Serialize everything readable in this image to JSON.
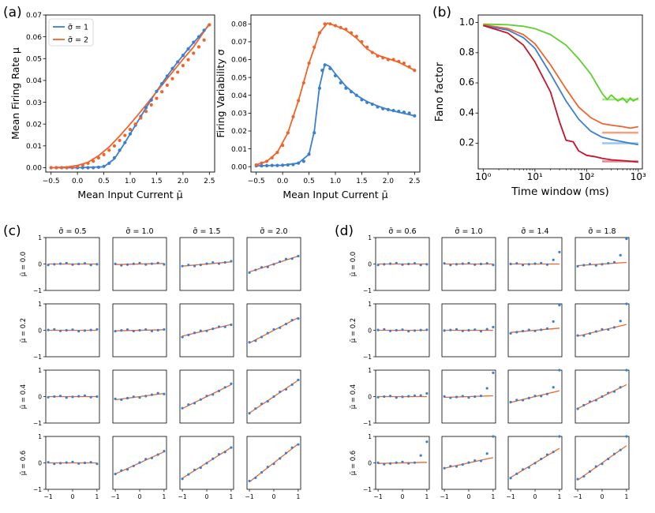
{
  "figure_labels": {
    "a": "(a)",
    "b": "(b)",
    "c": "(c)",
    "d": "(d)"
  },
  "colors": {
    "blue": "#3b7fd1",
    "orange": "#f0642b",
    "green": "#5fcf2a",
    "red": "#c4142a",
    "light_green": "#a6e88a",
    "light_orange": "#f5a07e",
    "light_blue": "#9cc4ee",
    "light_red": "#e88894"
  },
  "chart_data": [
    {
      "id": "a1",
      "type": "line",
      "xlabel": "Mean Input Current μ̄",
      "ylabel": "Mean Firing Rate μ",
      "xlim": [
        -0.6,
        2.6
      ],
      "ylim": [
        -0.002,
        0.07
      ],
      "xticks": [
        -0.5,
        0.0,
        0.5,
        1.0,
        1.5,
        2.0,
        2.5
      ],
      "xtick_labels": [
        "−0.5",
        "0.0",
        "0.5",
        "1.0",
        "1.5",
        "2.0",
        "2.5"
      ],
      "yticks": [
        0,
        0.01,
        0.02,
        0.03,
        0.04,
        0.05,
        0.06,
        0.07
      ],
      "ytick_labels": [
        "0.00",
        "0.01",
        "0.02",
        "0.03",
        "0.04",
        "0.05",
        "0.06",
        "0.07"
      ],
      "legend": {
        "position": "top-left",
        "entries": [
          "σ̄ = 1",
          "σ̄ = 2"
        ]
      },
      "series": [
        {
          "name": "σ̄ = 1",
          "color": "#3b7fd1",
          "x": [
            -0.5,
            0.0,
            0.5,
            0.7,
            0.9,
            1.1,
            1.3,
            1.5,
            1.7,
            1.9,
            2.1,
            2.3,
            2.5
          ],
          "y": [
            0.0,
            0.0,
            0.0004,
            0.004,
            0.0115,
            0.0195,
            0.0275,
            0.035,
            0.042,
            0.0485,
            0.0545,
            0.06,
            0.0655
          ]
        },
        {
          "name": "σ̄ = 2",
          "color": "#f0642b",
          "x": [
            -0.5,
            -0.2,
            0.0,
            0.2,
            0.4,
            0.6,
            0.8,
            1.0,
            1.2,
            1.4,
            1.6,
            1.8,
            2.0,
            2.2,
            2.5
          ],
          "y": [
            0.0,
            0.0003,
            0.001,
            0.0025,
            0.0055,
            0.0095,
            0.0145,
            0.02,
            0.0258,
            0.0318,
            0.0378,
            0.0438,
            0.0497,
            0.0554,
            0.066
          ]
        }
      ],
      "points": [
        {
          "series": "σ̄ = 1",
          "color": "#3b7fd1",
          "x": [
            -0.5,
            -0.4,
            -0.3,
            -0.2,
            -0.1,
            0.0,
            0.1,
            0.2,
            0.3,
            0.4,
            0.5,
            0.6,
            0.7,
            0.8,
            0.9,
            1.0,
            1.1,
            1.2,
            1.3,
            1.4,
            1.5,
            1.6,
            1.7,
            1.8,
            1.9,
            2.0,
            2.1,
            2.2,
            2.3,
            2.4,
            2.5
          ],
          "y": [
            0,
            0,
            0,
            0,
            0,
            0,
            0,
            0,
            0,
            0.0002,
            0.0006,
            0.002,
            0.0045,
            0.008,
            0.0115,
            0.0155,
            0.0195,
            0.0235,
            0.0275,
            0.031,
            0.035,
            0.0385,
            0.042,
            0.0455,
            0.0485,
            0.0515,
            0.0545,
            0.0575,
            0.06,
            0.063,
            0.0655
          ]
        },
        {
          "series": "σ̄ = 2",
          "color": "#f0642b",
          "x": [
            -0.5,
            -0.4,
            -0.3,
            -0.2,
            -0.1,
            0.0,
            0.1,
            0.2,
            0.3,
            0.4,
            0.5,
            0.6,
            0.7,
            0.8,
            0.9,
            1.0,
            1.1,
            1.2,
            1.3,
            1.4,
            1.5,
            1.6,
            1.7,
            1.8,
            1.9,
            2.0,
            2.1,
            2.2,
            2.3,
            2.4,
            2.5
          ],
          "y": [
            0,
            0,
            0,
            0,
            0.0002,
            0.0006,
            0.0012,
            0.002,
            0.003,
            0.0045,
            0.006,
            0.008,
            0.01,
            0.0125,
            0.0148,
            0.0175,
            0.02,
            0.0228,
            0.0258,
            0.0288,
            0.0318,
            0.0348,
            0.0378,
            0.0408,
            0.0438,
            0.0468,
            0.0495,
            0.0525,
            0.0554,
            0.0585,
            0.0655
          ]
        }
      ]
    },
    {
      "id": "a2",
      "type": "line",
      "xlabel": "Mean Input Current μ̄",
      "ylabel": "Firing Variability σ",
      "xlim": [
        -0.6,
        2.6
      ],
      "ylim": [
        -0.003,
        0.085
      ],
      "xticks": [
        -0.5,
        0.0,
        0.5,
        1.0,
        1.5,
        2.0,
        2.5
      ],
      "xtick_labels": [
        "−0.5",
        "0.0",
        "0.5",
        "1.0",
        "1.5",
        "2.0",
        "2.5"
      ],
      "yticks": [
        0,
        0.01,
        0.02,
        0.03,
        0.04,
        0.05,
        0.06,
        0.07,
        0.08
      ],
      "ytick_labels": [
        "0.00",
        "0.01",
        "0.02",
        "0.03",
        "0.04",
        "0.05",
        "0.06",
        "0.07",
        "0.08"
      ],
      "series": [
        {
          "name": "σ̄ = 1",
          "color": "#3b7fd1",
          "x": [
            -0.5,
            0.0,
            0.3,
            0.5,
            0.6,
            0.7,
            0.8,
            0.9,
            1.0,
            1.2,
            1.4,
            1.6,
            1.8,
            2.0,
            2.2,
            2.5
          ],
          "y": [
            0.0005,
            0.0008,
            0.002,
            0.007,
            0.02,
            0.045,
            0.0575,
            0.056,
            0.052,
            0.045,
            0.04,
            0.0365,
            0.034,
            0.032,
            0.0305,
            0.0285
          ]
        },
        {
          "name": "σ̄ = 2",
          "color": "#f0642b",
          "x": [
            -0.5,
            -0.3,
            -0.1,
            0.1,
            0.3,
            0.5,
            0.7,
            0.85,
            1.0,
            1.2,
            1.4,
            1.6,
            1.8,
            2.0,
            2.2,
            2.5
          ],
          "y": [
            0.001,
            0.003,
            0.008,
            0.019,
            0.037,
            0.058,
            0.075,
            0.0805,
            0.079,
            0.0765,
            0.072,
            0.066,
            0.0625,
            0.0605,
            0.0585,
            0.054
          ]
        }
      ],
      "points": [
        {
          "series": "σ̄ = 1",
          "color": "#3b7fd1",
          "x": [
            -0.5,
            -0.4,
            -0.3,
            -0.2,
            -0.1,
            0.0,
            0.1,
            0.2,
            0.3,
            0.4,
            0.5,
            0.6,
            0.7,
            0.75,
            0.8,
            0.9,
            1.0,
            1.1,
            1.2,
            1.3,
            1.4,
            1.5,
            1.6,
            1.7,
            1.8,
            1.9,
            2.0,
            2.1,
            2.2,
            2.3,
            2.4,
            2.5
          ],
          "y": [
            0.0005,
            0.0005,
            0.0006,
            0.0007,
            0.0007,
            0.0008,
            0.001,
            0.0012,
            0.002,
            0.003,
            0.007,
            0.019,
            0.044,
            0.054,
            0.057,
            0.055,
            0.051,
            0.047,
            0.044,
            0.042,
            0.04,
            0.0375,
            0.036,
            0.035,
            0.0335,
            0.0325,
            0.032,
            0.0315,
            0.031,
            0.0305,
            0.03,
            0.0285
          ]
        },
        {
          "series": "σ̄ = 2",
          "color": "#f0642b",
          "x": [
            -0.5,
            -0.4,
            -0.3,
            -0.2,
            -0.1,
            0.0,
            0.1,
            0.2,
            0.3,
            0.4,
            0.5,
            0.6,
            0.7,
            0.8,
            0.9,
            1.0,
            1.1,
            1.2,
            1.3,
            1.4,
            1.5,
            1.6,
            1.7,
            1.8,
            1.9,
            2.0,
            2.1,
            2.2,
            2.3,
            2.4,
            2.5
          ],
          "y": [
            0.001,
            0.002,
            0.003,
            0.005,
            0.008,
            0.012,
            0.019,
            0.028,
            0.037,
            0.047,
            0.058,
            0.067,
            0.075,
            0.08,
            0.08,
            0.079,
            0.078,
            0.077,
            0.075,
            0.073,
            0.07,
            0.067,
            0.064,
            0.062,
            0.061,
            0.06,
            0.06,
            0.059,
            0.058,
            0.056,
            0.054
          ]
        }
      ]
    },
    {
      "id": "b",
      "type": "line",
      "xscale": "log",
      "xlabel": "Time window (ms)",
      "ylabel": "Fano factor",
      "xlim": [
        0.8,
        1200
      ],
      "ylim": [
        0.03,
        1.05
      ],
      "xticks": [
        1,
        10,
        100,
        1000
      ],
      "xtick_labels": [
        "10⁰",
        "10¹",
        "10²",
        "10³"
      ],
      "yticks": [
        0.2,
        0.4,
        0.6,
        0.8,
        1.0
      ],
      "ytick_labels": [
        "0.2",
        "0.4",
        "0.6",
        "0.8",
        "1.0"
      ],
      "series": [
        {
          "name": "green",
          "color": "#5fcf2a",
          "x": [
            1,
            3,
            6,
            10,
            20,
            40,
            70,
            120,
            200,
            250,
            300,
            400,
            500,
            600,
            700,
            800,
            1000
          ],
          "y": [
            0.99,
            0.985,
            0.975,
            0.96,
            0.92,
            0.85,
            0.76,
            0.66,
            0.53,
            0.49,
            0.52,
            0.48,
            0.5,
            0.47,
            0.5,
            0.48,
            0.5
          ]
        },
        {
          "name": "orange",
          "color": "#f0642b",
          "x": [
            1,
            3,
            6,
            10,
            20,
            40,
            70,
            120,
            200,
            300,
            500,
            700,
            1000
          ],
          "y": [
            0.985,
            0.96,
            0.92,
            0.86,
            0.72,
            0.56,
            0.44,
            0.37,
            0.33,
            0.32,
            0.31,
            0.3,
            0.31
          ]
        },
        {
          "name": "blue",
          "color": "#3b7fd1",
          "x": [
            1,
            3,
            6,
            10,
            20,
            40,
            70,
            120,
            200,
            300,
            500,
            700,
            1000
          ],
          "y": [
            0.98,
            0.95,
            0.9,
            0.83,
            0.66,
            0.48,
            0.36,
            0.28,
            0.24,
            0.225,
            0.21,
            0.2,
            0.19
          ]
        },
        {
          "name": "red",
          "color": "#c4142a",
          "x": [
            1,
            3,
            6,
            10,
            20,
            30,
            40,
            55,
            70,
            100,
            150,
            200,
            300,
            500,
            700,
            1000
          ],
          "y": [
            0.98,
            0.93,
            0.85,
            0.74,
            0.54,
            0.34,
            0.22,
            0.21,
            0.15,
            0.12,
            0.11,
            0.1,
            0.09,
            0.085,
            0.08,
            0.075
          ]
        }
      ],
      "reference_lines": [
        {
          "color": "#a6e88a",
          "y": 0.49,
          "x": [
            200,
            1000
          ]
        },
        {
          "color": "#f5a07e",
          "y": 0.27,
          "x": [
            200,
            1000
          ]
        },
        {
          "color": "#9cc4ee",
          "y": 0.2,
          "x": [
            200,
            1000
          ]
        },
        {
          "color": "#e88894",
          "y": 0.08,
          "x": [
            200,
            1000
          ]
        }
      ]
    }
  ],
  "grids": [
    {
      "id": "c",
      "col_titles": [
        "σ̄ = 0.5",
        "σ̄ = 1.0",
        "σ̄ = 1.5",
        "σ̄ = 2.0"
      ],
      "row_labels": [
        "μ̄ = 0.0",
        "μ̄ = 0.2",
        "μ̄ = 0.4",
        "μ̄ = 0.6"
      ],
      "yticks": [
        "1",
        "0",
        "−1"
      ],
      "xticks": [
        "−1",
        "0",
        "1"
      ],
      "slopes": [
        [
          0.0,
          0.02,
          0.08,
          0.3
        ],
        [
          0.0,
          0.02,
          0.22,
          0.48
        ],
        [
          0.0,
          0.12,
          0.45,
          0.62
        ],
        [
          0.0,
          0.42,
          0.58,
          0.72
        ]
      ],
      "tail": [
        [
          0.0,
          0.0,
          0.0,
          0.0
        ],
        [
          0.0,
          0.0,
          0.0,
          0.0
        ],
        [
          0.0,
          0.0,
          0.0,
          0.0
        ],
        [
          0.0,
          0.0,
          0.0,
          0.0
        ]
      ]
    },
    {
      "id": "d",
      "col_titles": [
        "σ̄ = 0.6",
        "σ̄ = 1.0",
        "σ̄ = 1.4",
        "σ̄ = 1.8"
      ],
      "row_labels": [
        "μ̄ = 0.0",
        "μ̄ = 0.2",
        "μ̄ = 0.4",
        "μ̄ = 0.6"
      ],
      "yticks": [
        "1",
        "0",
        "−1"
      ],
      "xticks": [
        "−1",
        "0",
        "1"
      ],
      "slopes": [
        [
          0.0,
          0.0,
          0.0,
          0.06
        ],
        [
          0.0,
          0.0,
          0.08,
          0.22
        ],
        [
          0.0,
          0.03,
          0.22,
          0.45
        ],
        [
          0.02,
          0.2,
          0.55,
          0.65
        ]
      ],
      "tail": [
        [
          0.0,
          0.0,
          0.45,
          0.95
        ],
        [
          0.02,
          0.12,
          0.95,
          1.0
        ],
        [
          0.12,
          0.9,
          1.0,
          1.0
        ],
        [
          0.8,
          1.0,
          1.0,
          1.0
        ]
      ]
    }
  ]
}
